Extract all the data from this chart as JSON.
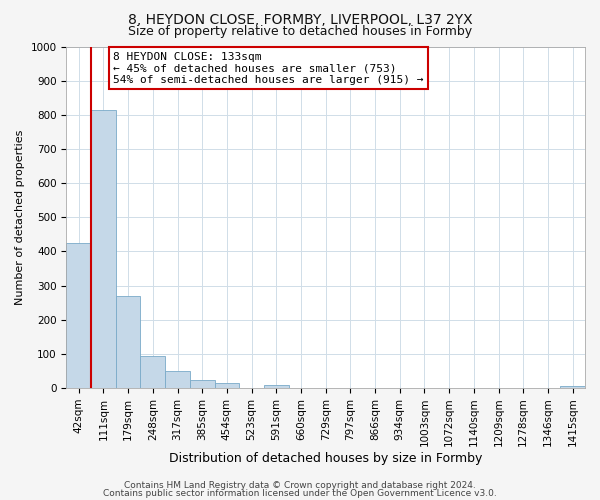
{
  "title": "8, HEYDON CLOSE, FORMBY, LIVERPOOL, L37 2YX",
  "subtitle": "Size of property relative to detached houses in Formby",
  "xlabel": "Distribution of detached houses by size in Formby",
  "ylabel": "Number of detached properties",
  "bar_labels": [
    "42sqm",
    "111sqm",
    "179sqm",
    "248sqm",
    "317sqm",
    "385sqm",
    "454sqm",
    "523sqm",
    "591sqm",
    "660sqm",
    "729sqm",
    "797sqm",
    "866sqm",
    "934sqm",
    "1003sqm",
    "1072sqm",
    "1140sqm",
    "1209sqm",
    "1278sqm",
    "1346sqm",
    "1415sqm"
  ],
  "bar_values": [
    425,
    815,
    270,
    93,
    50,
    22,
    14,
    0,
    8,
    0,
    0,
    0,
    0,
    0,
    0,
    0,
    0,
    0,
    0,
    0,
    7
  ],
  "bar_color": "#c5d8e8",
  "bar_edge_color": "#7aaac8",
  "vline_color": "#cc0000",
  "annotation_text_line1": "8 HEYDON CLOSE: 133sqm",
  "annotation_text_line2": "← 45% of detached houses are smaller (753)",
  "annotation_text_line3": "54% of semi-detached houses are larger (915) →",
  "ylim": [
    0,
    1000
  ],
  "yticks": [
    0,
    100,
    200,
    300,
    400,
    500,
    600,
    700,
    800,
    900,
    1000
  ],
  "footer1": "Contains HM Land Registry data © Crown copyright and database right 2024.",
  "footer2": "Contains public sector information licensed under the Open Government Licence v3.0.",
  "bg_color": "#f5f5f5",
  "plot_bg_color": "#ffffff",
  "grid_color": "#d0dde8",
  "title_fontsize": 10,
  "subtitle_fontsize": 9,
  "annotation_fontsize": 8,
  "footer_fontsize": 6.5,
  "xlabel_fontsize": 9,
  "ylabel_fontsize": 8,
  "tick_fontsize": 7.5
}
